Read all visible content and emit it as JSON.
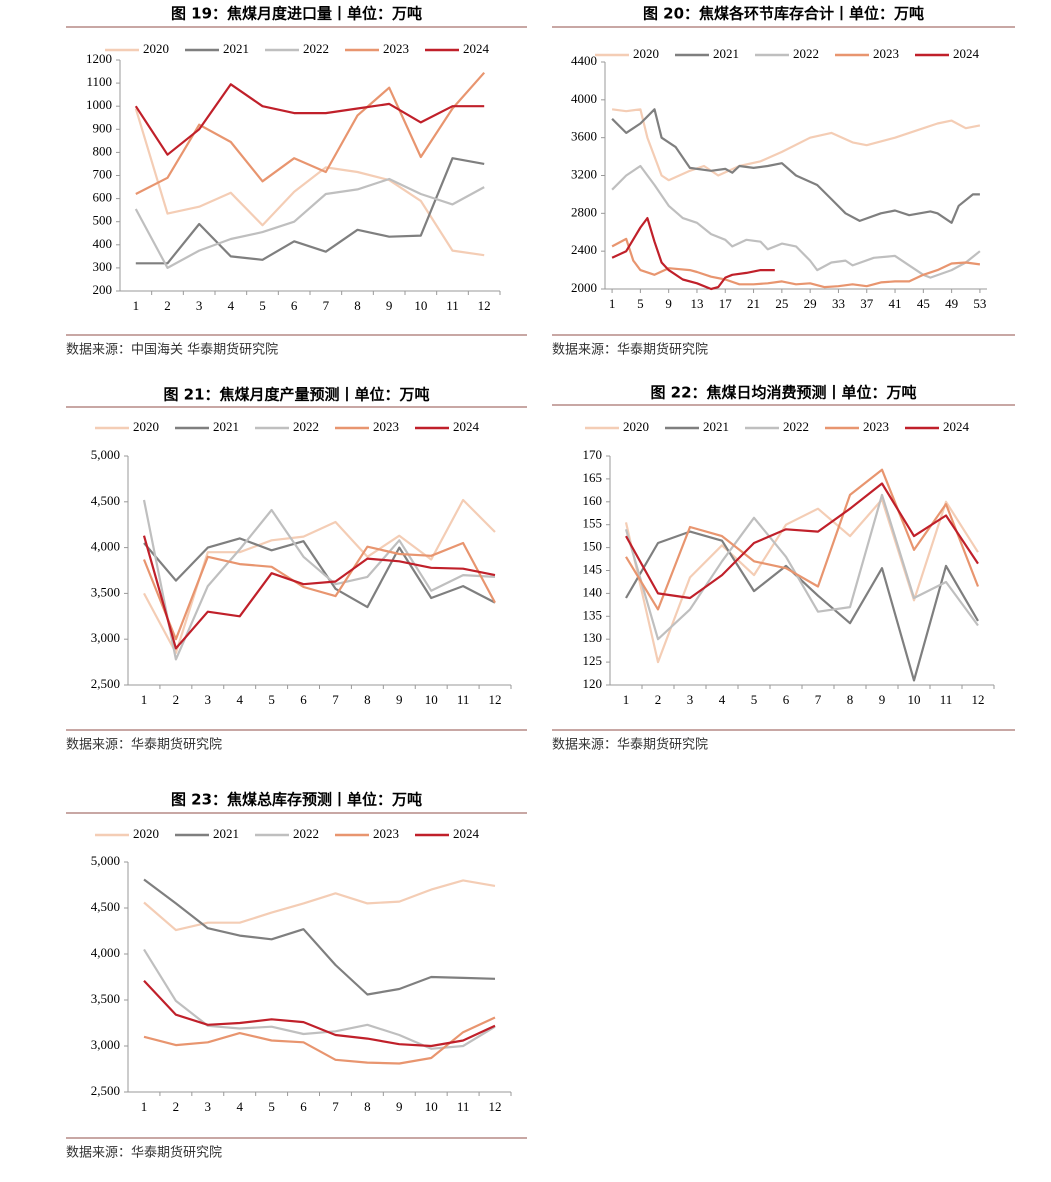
{
  "chart_data": [
    {
      "type": "line",
      "title": "图 19：焦煤月度进口量丨单位：万吨",
      "source": "数据来源：中国海关  华泰期货研究院",
      "categories": [
        "1",
        "2",
        "3",
        "4",
        "5",
        "6",
        "7",
        "8",
        "9",
        "10",
        "11",
        "12"
      ],
      "ylim": [
        200,
        1200
      ],
      "yticks": [
        200,
        300,
        400,
        500,
        600,
        700,
        800,
        900,
        1000,
        1100,
        1200
      ],
      "series": [
        {
          "name": "2020",
          "color": "#f4cdb5",
          "values": [
            990,
            535,
            565,
            625,
            485,
            630,
            735,
            715,
            680,
            590,
            375,
            355
          ]
        },
        {
          "name": "2021",
          "color": "#7f7f7f",
          "values": [
            320,
            320,
            490,
            350,
            335,
            415,
            370,
            465,
            435,
            440,
            775,
            750
          ]
        },
        {
          "name": "2022",
          "color": "#bfbfbf",
          "values": [
            555,
            300,
            375,
            425,
            455,
            500,
            620,
            640,
            685,
            620,
            575,
            650
          ]
        },
        {
          "name": "2023",
          "color": "#e8956f",
          "values": [
            620,
            690,
            920,
            845,
            675,
            775,
            715,
            960,
            1080,
            780,
            990,
            1145
          ]
        },
        {
          "name": "2024",
          "color": "#c0202a",
          "values": [
            1000,
            790,
            900,
            1095,
            1000,
            970,
            970,
            990,
            1010,
            930,
            1000,
            1000
          ]
        }
      ]
    },
    {
      "type": "line",
      "title": "图 20：焦煤各环节库存合计丨单位：万吨",
      "source": "数据来源：华泰期货研究院",
      "xlim": [
        0,
        54
      ],
      "xticks": [
        1,
        5,
        9,
        13,
        17,
        21,
        25,
        29,
        33,
        37,
        41,
        45,
        49,
        53
      ],
      "ylim": [
        2000,
        4400
      ],
      "yticks": [
        2000,
        2400,
        2800,
        3200,
        3600,
        4000,
        4400
      ],
      "series": [
        {
          "name": "2020",
          "color": "#f4cdb5",
          "x": [
            1,
            3,
            5,
            6,
            8,
            9,
            12,
            14,
            16,
            19,
            22,
            25,
            29,
            32,
            35,
            37,
            41,
            43,
            47,
            49,
            51,
            53
          ],
          "values": [
            3900,
            3880,
            3900,
            3600,
            3200,
            3150,
            3250,
            3300,
            3200,
            3300,
            3350,
            3450,
            3600,
            3650,
            3550,
            3520,
            3600,
            3650,
            3750,
            3780,
            3700,
            3730
          ]
        },
        {
          "name": "2021",
          "color": "#7f7f7f",
          "x": [
            1,
            3,
            5,
            7,
            8,
            10,
            12,
            15,
            17,
            18,
            19,
            21,
            23,
            25,
            27,
            30,
            32,
            34,
            36,
            39,
            41,
            43,
            46,
            47,
            49,
            50,
            52,
            53
          ],
          "values": [
            3800,
            3650,
            3750,
            3900,
            3600,
            3500,
            3280,
            3250,
            3270,
            3230,
            3300,
            3280,
            3300,
            3330,
            3200,
            3100,
            2950,
            2800,
            2720,
            2800,
            2830,
            2780,
            2820,
            2800,
            2700,
            2880,
            3000,
            3000
          ]
        },
        {
          "name": "2022",
          "color": "#bfbfbf",
          "x": [
            1,
            3,
            5,
            7,
            9,
            11,
            13,
            15,
            17,
            18,
            20,
            22,
            23,
            25,
            27,
            29,
            30,
            32,
            34,
            35,
            38,
            41,
            43,
            45,
            46,
            49,
            51,
            53
          ],
          "values": [
            3050,
            3200,
            3300,
            3100,
            2880,
            2750,
            2700,
            2580,
            2520,
            2450,
            2520,
            2500,
            2420,
            2480,
            2450,
            2300,
            2200,
            2280,
            2300,
            2250,
            2330,
            2350,
            2250,
            2150,
            2120,
            2200,
            2280,
            2400
          ]
        },
        {
          "name": "2023",
          "color": "#e8956f",
          "x": [
            1,
            3,
            4,
            5,
            7,
            9,
            12,
            13,
            15,
            17,
            19,
            21,
            23,
            25,
            27,
            29,
            31,
            33,
            35,
            37,
            39,
            41,
            43,
            45,
            47,
            49,
            51,
            53
          ],
          "values": [
            2450,
            2530,
            2300,
            2200,
            2150,
            2220,
            2200,
            2180,
            2130,
            2100,
            2050,
            2050,
            2060,
            2080,
            2050,
            2060,
            2020,
            2030,
            2050,
            2030,
            2070,
            2080,
            2080,
            2150,
            2200,
            2270,
            2280,
            2260
          ]
        },
        {
          "name": "2024",
          "color": "#c0202a",
          "x": [
            1,
            3,
            5,
            6,
            7,
            8,
            9,
            11,
            13,
            15,
            16,
            17,
            18,
            20,
            22,
            24
          ],
          "values": [
            2330,
            2400,
            2650,
            2750,
            2500,
            2280,
            2200,
            2100,
            2060,
            2000,
            2020,
            2120,
            2150,
            2170,
            2200,
            2200
          ]
        }
      ]
    },
    {
      "type": "line",
      "title": "图 21：焦煤月度产量预测丨单位：万吨",
      "source": "数据来源：华泰期货研究院",
      "categories": [
        "1",
        "2",
        "3",
        "4",
        "5",
        "6",
        "7",
        "8",
        "9",
        "10",
        "11",
        "12"
      ],
      "ylim": [
        2500,
        5000
      ],
      "yticks": [
        {
          "value": 2500,
          "label": "2,500"
        },
        {
          "value": 3000,
          "label": "3,000"
        },
        {
          "value": 3500,
          "label": "3,500"
        },
        {
          "value": 4000,
          "label": "4,000"
        },
        {
          "value": 4500,
          "label": "4,500"
        },
        {
          "value": 5000,
          "label": "5,000"
        }
      ],
      "series": [
        {
          "name": "2020",
          "color": "#f4cdb5",
          "values": [
            3500,
            2850,
            3950,
            3950,
            4080,
            4120,
            4280,
            3900,
            4130,
            3870,
            4520,
            4170
          ]
        },
        {
          "name": "2021",
          "color": "#7f7f7f",
          "values": [
            4050,
            3640,
            4000,
            4100,
            3970,
            4070,
            3550,
            3350,
            4000,
            3450,
            3580,
            3400
          ]
        },
        {
          "name": "2022",
          "color": "#bfbfbf",
          "values": [
            4520,
            2780,
            3580,
            3980,
            4410,
            3900,
            3600,
            3680,
            4080,
            3530,
            3700,
            3680
          ]
        },
        {
          "name": "2023",
          "color": "#e8956f",
          "values": [
            3870,
            3000,
            3900,
            3820,
            3790,
            3570,
            3470,
            4010,
            3930,
            3910,
            4050,
            3400
          ]
        },
        {
          "name": "2024",
          "color": "#c0202a",
          "values": [
            4130,
            2900,
            3300,
            3250,
            3720,
            3600,
            3630,
            3880,
            3850,
            3780,
            3770,
            3700
          ]
        }
      ]
    },
    {
      "type": "line",
      "title": "图 22：焦煤日均消费预测丨单位：万吨",
      "source": "数据来源：华泰期货研究院",
      "categories": [
        "1",
        "2",
        "3",
        "4",
        "5",
        "6",
        "7",
        "8",
        "9",
        "10",
        "11",
        "12"
      ],
      "ylim": [
        120,
        170
      ],
      "yticks": [
        120,
        125,
        130,
        135,
        140,
        145,
        150,
        155,
        160,
        165,
        170
      ],
      "series": [
        {
          "name": "2020",
          "color": "#f4cdb5",
          "values": [
            155.5,
            125,
            143.5,
            150.5,
            144,
            155,
            158.5,
            152.5,
            160.5,
            138.5,
            160,
            149
          ]
        },
        {
          "name": "2021",
          "color": "#7f7f7f",
          "values": [
            139,
            151,
            153.5,
            151.5,
            140.5,
            146,
            139.5,
            133.5,
            145.5,
            121,
            146,
            134
          ]
        },
        {
          "name": "2022",
          "color": "#bfbfbf",
          "values": [
            154,
            130,
            136.5,
            147,
            156.5,
            148,
            136,
            137,
            161.5,
            139,
            142.5,
            133
          ]
        },
        {
          "name": "2023",
          "color": "#e8956f",
          "values": [
            148,
            136.5,
            154.5,
            152.5,
            147,
            145.5,
            141.5,
            161.5,
            167,
            149.5,
            159.5,
            141.5
          ]
        },
        {
          "name": "2024",
          "color": "#c0202a",
          "values": [
            152.5,
            140,
            139,
            144,
            151,
            154,
            153.5,
            158.5,
            164,
            152.5,
            157,
            146.5
          ]
        }
      ]
    },
    {
      "type": "line",
      "title": "图 23：焦煤总库存预测丨单位：万吨",
      "source": "数据来源：华泰期货研究院",
      "categories": [
        "1",
        "2",
        "3",
        "4",
        "5",
        "6",
        "7",
        "8",
        "9",
        "10",
        "11",
        "12"
      ],
      "ylim": [
        2500,
        5000
      ],
      "yticks": [
        {
          "value": 2500,
          "label": "2,500"
        },
        {
          "value": 3000,
          "label": "3,000"
        },
        {
          "value": 3500,
          "label": "3,500"
        },
        {
          "value": 4000,
          "label": "4,000"
        },
        {
          "value": 4500,
          "label": "4,500"
        },
        {
          "value": 5000,
          "label": "5,000"
        }
      ],
      "series": [
        {
          "name": "2020",
          "color": "#f4cdb5",
          "values": [
            4560,
            4260,
            4340,
            4340,
            4450,
            4550,
            4660,
            4550,
            4570,
            4700,
            4800,
            4740
          ]
        },
        {
          "name": "2021",
          "color": "#7f7f7f",
          "values": [
            4810,
            4550,
            4280,
            4200,
            4160,
            4270,
            3880,
            3560,
            3620,
            3750,
            3740,
            3730
          ]
        },
        {
          "name": "2022",
          "color": "#bfbfbf",
          "values": [
            4050,
            3490,
            3220,
            3190,
            3210,
            3130,
            3160,
            3230,
            3120,
            2970,
            3000,
            3210
          ]
        },
        {
          "name": "2023",
          "color": "#e8956f",
          "values": [
            3100,
            3010,
            3040,
            3140,
            3060,
            3040,
            2850,
            2820,
            2810,
            2870,
            3150,
            3310
          ]
        },
        {
          "name": "2024",
          "color": "#c0202a",
          "values": [
            3710,
            3340,
            3230,
            3250,
            3290,
            3260,
            3120,
            3080,
            3020,
            3000,
            3060,
            3220
          ]
        }
      ]
    }
  ]
}
